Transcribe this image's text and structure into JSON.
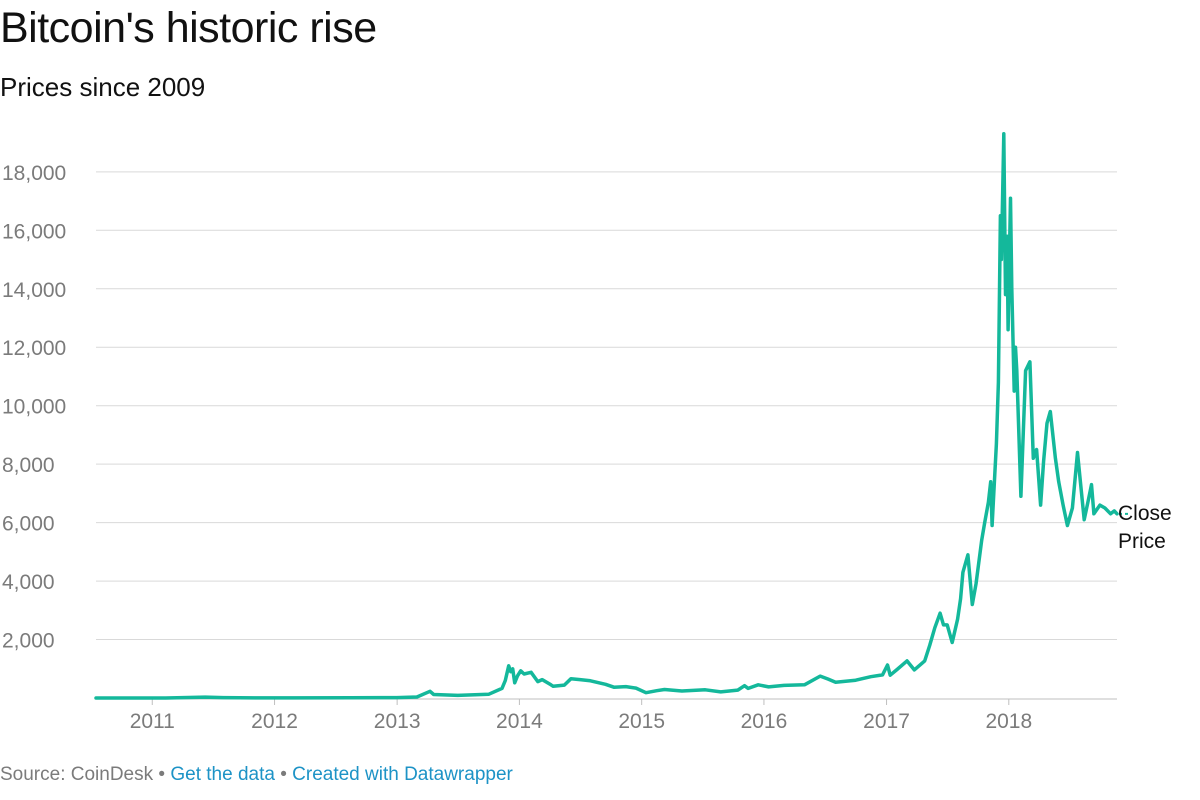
{
  "chart_data": {
    "type": "line",
    "title": "Bitcoin's historic rise",
    "subtitle": "Prices since 2009",
    "xlabel": "",
    "ylabel": "",
    "x_range": [
      "2010-07-17",
      "2018-11-20"
    ],
    "ylim": [
      0,
      19500
    ],
    "y_ticks": [
      2000,
      4000,
      6000,
      8000,
      10000,
      12000,
      14000,
      16000,
      18000
    ],
    "y_tick_labels": [
      "2,000",
      "4,000",
      "6,000",
      "8,000",
      "10,000",
      "12,000",
      "14,000",
      "16,000",
      "18,000"
    ],
    "x_ticks": [
      "2011-01-01",
      "2012-01-01",
      "2013-01-01",
      "2014-01-01",
      "2015-01-01",
      "2016-01-01",
      "2017-01-01",
      "2018-01-01"
    ],
    "x_tick_labels": [
      "2011",
      "2012",
      "2013",
      "2014",
      "2015",
      "2016",
      "2017",
      "2018"
    ],
    "grid": "horizontal",
    "series": [
      {
        "name": "Close Price",
        "color": "#14b89b",
        "points": [
          [
            "2010-07-17",
            0.05
          ],
          [
            "2011-02-10",
            1
          ],
          [
            "2011-06-08",
            30
          ],
          [
            "2011-08-01",
            13
          ],
          [
            "2011-11-20",
            2
          ],
          [
            "2012-03-01",
            5
          ],
          [
            "2012-08-15",
            11
          ],
          [
            "2012-12-31",
            13
          ],
          [
            "2013-03-01",
            34
          ],
          [
            "2013-04-09",
            230
          ],
          [
            "2013-04-20",
            120
          ],
          [
            "2013-07-01",
            90
          ],
          [
            "2013-10-01",
            125
          ],
          [
            "2013-11-10",
            330
          ],
          [
            "2013-11-20",
            600
          ],
          [
            "2013-11-30",
            1100
          ],
          [
            "2013-12-06",
            900
          ],
          [
            "2013-12-12",
            1000
          ],
          [
            "2013-12-18",
            520
          ],
          [
            "2013-12-26",
            750
          ],
          [
            "2014-01-05",
            930
          ],
          [
            "2014-01-15",
            820
          ],
          [
            "2014-02-05",
            880
          ],
          [
            "2014-02-25",
            560
          ],
          [
            "2014-03-10",
            630
          ],
          [
            "2014-04-05",
            450
          ],
          [
            "2014-04-12",
            400
          ],
          [
            "2014-05-15",
            440
          ],
          [
            "2014-06-04",
            660
          ],
          [
            "2014-07-01",
            630
          ],
          [
            "2014-08-01",
            590
          ],
          [
            "2014-09-15",
            470
          ],
          [
            "2014-10-10",
            370
          ],
          [
            "2014-11-15",
            390
          ],
          [
            "2014-12-15",
            340
          ],
          [
            "2015-01-14",
            180
          ],
          [
            "2015-02-15",
            250
          ],
          [
            "2015-03-10",
            290
          ],
          [
            "2015-05-01",
            240
          ],
          [
            "2015-07-10",
            280
          ],
          [
            "2015-08-25",
            210
          ],
          [
            "2015-10-15",
            270
          ],
          [
            "2015-11-04",
            420
          ],
          [
            "2015-11-15",
            330
          ],
          [
            "2015-12-15",
            450
          ],
          [
            "2016-01-15",
            380
          ],
          [
            "2016-03-01",
            430
          ],
          [
            "2016-05-01",
            450
          ],
          [
            "2016-06-17",
            750
          ],
          [
            "2016-07-10",
            650
          ],
          [
            "2016-08-02",
            540
          ],
          [
            "2016-10-01",
            610
          ],
          [
            "2016-11-15",
            730
          ],
          [
            "2016-12-20",
            790
          ],
          [
            "2017-01-04",
            1130
          ],
          [
            "2017-01-12",
            780
          ],
          [
            "2017-02-01",
            970
          ],
          [
            "2017-03-03",
            1270
          ],
          [
            "2017-03-25",
            960
          ],
          [
            "2017-04-25",
            1270
          ],
          [
            "2017-05-10",
            1800
          ],
          [
            "2017-05-25",
            2400
          ],
          [
            "2017-06-10",
            2900
          ],
          [
            "2017-06-20",
            2500
          ],
          [
            "2017-07-01",
            2500
          ],
          [
            "2017-07-16",
            1900
          ],
          [
            "2017-08-01",
            2700
          ],
          [
            "2017-08-10",
            3400
          ],
          [
            "2017-08-17",
            4300
          ],
          [
            "2017-09-01",
            4900
          ],
          [
            "2017-09-14",
            3200
          ],
          [
            "2017-09-25",
            3900
          ],
          [
            "2017-10-12",
            5400
          ],
          [
            "2017-10-21",
            6000
          ],
          [
            "2017-11-01",
            6700
          ],
          [
            "2017-11-08",
            7400
          ],
          [
            "2017-11-12",
            5900
          ],
          [
            "2017-11-25",
            8700
          ],
          [
            "2017-12-01",
            10800
          ],
          [
            "2017-12-07",
            16500
          ],
          [
            "2017-12-10",
            15000
          ],
          [
            "2017-12-17",
            19300
          ],
          [
            "2017-12-22",
            13800
          ],
          [
            "2017-12-27",
            15800
          ],
          [
            "2017-12-30",
            12600
          ],
          [
            "2018-01-06",
            17100
          ],
          [
            "2018-01-10",
            14000
          ],
          [
            "2018-01-17",
            10500
          ],
          [
            "2018-01-21",
            12000
          ],
          [
            "2018-01-25",
            11200
          ],
          [
            "2018-02-06",
            6900
          ],
          [
            "2018-02-20",
            11200
          ],
          [
            "2018-03-05",
            11500
          ],
          [
            "2018-03-15",
            8200
          ],
          [
            "2018-03-25",
            8500
          ],
          [
            "2018-04-06",
            6600
          ],
          [
            "2018-04-15",
            8100
          ],
          [
            "2018-04-25",
            9400
          ],
          [
            "2018-05-05",
            9800
          ],
          [
            "2018-05-20",
            8200
          ],
          [
            "2018-05-30",
            7400
          ],
          [
            "2018-06-12",
            6600
          ],
          [
            "2018-06-25",
            5900
          ],
          [
            "2018-07-10",
            6500
          ],
          [
            "2018-07-25",
            8400
          ],
          [
            "2018-08-01",
            7600
          ],
          [
            "2018-08-14",
            6100
          ],
          [
            "2018-08-25",
            6700
          ],
          [
            "2018-09-05",
            7300
          ],
          [
            "2018-09-12",
            6300
          ],
          [
            "2018-09-30",
            6600
          ],
          [
            "2018-10-15",
            6500
          ],
          [
            "2018-11-01",
            6300
          ],
          [
            "2018-11-12",
            6400
          ],
          [
            "2018-11-20",
            6300
          ]
        ]
      }
    ]
  },
  "footer": {
    "source": "Source: CoinDesk",
    "separator": "•",
    "get_data": "Get the data",
    "created_with": "Created with Datawrapper"
  }
}
